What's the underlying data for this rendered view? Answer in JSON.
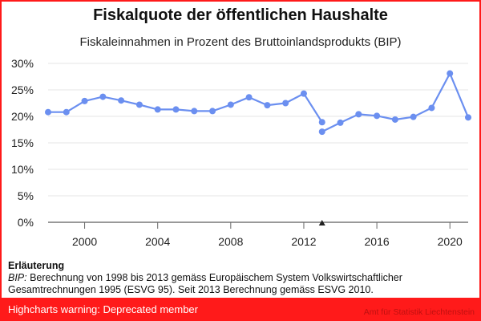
{
  "chart_data": {
    "type": "line",
    "title": "Fiskalquote der öffentlichen Haushalte",
    "subtitle": "Fiskaleinnahmen in Prozent des Bruttoinlandsprodukts (BIP)",
    "xlabel": "",
    "ylabel": "",
    "xlim": [
      1998,
      2021
    ],
    "ylim": [
      0,
      30
    ],
    "x_ticks": [
      2000,
      2004,
      2008,
      2012,
      2016,
      2020
    ],
    "y_ticks": [
      0,
      5,
      10,
      15,
      20,
      25,
      30
    ],
    "y_tick_suffix": "%",
    "grid": "horizontal",
    "legend": "none",
    "marker_year": 2013,
    "color": "#6b8ff0",
    "series": [
      {
        "segment": "ESVG 95",
        "x": [
          1998,
          1999,
          2000,
          2001,
          2002,
          2003,
          2004,
          2005,
          2006,
          2007,
          2008,
          2009,
          2010,
          2011,
          2012,
          2013
        ],
        "y": [
          20.8,
          20.8,
          22.9,
          23.7,
          23.0,
          22.2,
          21.3,
          21.3,
          21.0,
          21.0,
          22.2,
          23.6,
          22.1,
          22.5,
          24.3,
          18.9
        ]
      },
      {
        "segment": "ESVG 2010",
        "x": [
          2013,
          2014,
          2015,
          2016,
          2017,
          2018,
          2019,
          2020,
          2021
        ],
        "y": [
          17.1,
          18.8,
          20.4,
          20.1,
          19.4,
          19.9,
          21.6,
          28.1,
          19.8
        ]
      }
    ]
  },
  "note": {
    "heading": "Erläuterung",
    "term": "BIP:",
    "text": " Berechnung von 1998 bis 2013 gemäss Europäischem System Volkswirtschaftlicher Gesamtrechnungen 1995 (ESVG 95). Seit 2013 Berechnung gemäss ESVG 2010."
  },
  "warning": {
    "text": "Highcharts warning: Deprecated member"
  },
  "credits": {
    "text": "Amt für Statistik Liechtenstein"
  }
}
